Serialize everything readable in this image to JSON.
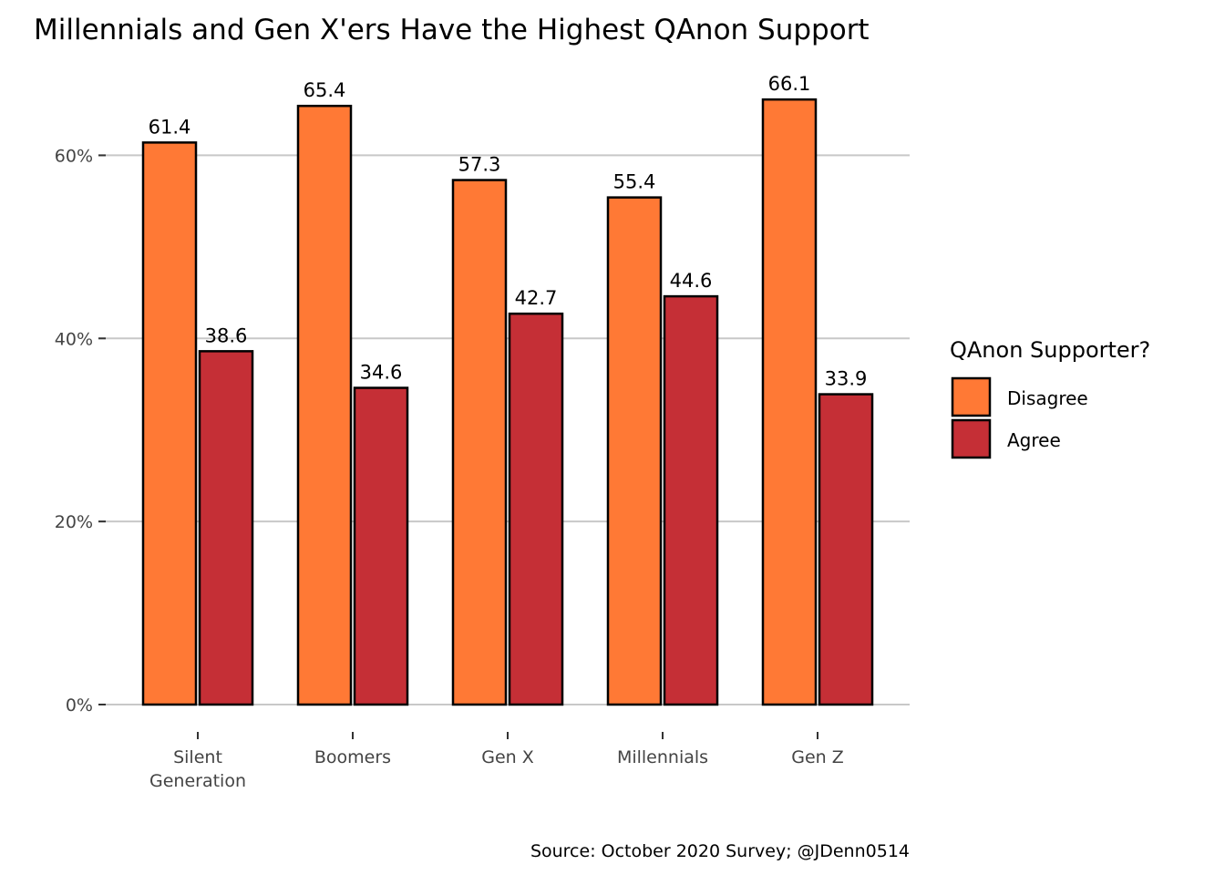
{
  "chart_data": {
    "type": "bar",
    "title": "Millennials and Gen X'ers Have the Highest QAnon Support",
    "caption": "Source: October 2020 Survey; @JDenn0514",
    "xlabel": "",
    "ylabel": "",
    "categories": [
      "Silent Generation",
      "Boomers",
      "Gen X",
      "Millennials",
      "Gen Z"
    ],
    "category_lines": [
      [
        "Silent",
        "Generation"
      ],
      [
        "Boomers"
      ],
      [
        "Gen X"
      ],
      [
        "Millennials"
      ],
      [
        "Gen Z"
      ]
    ],
    "series": [
      {
        "name": "Disagree",
        "values": [
          61.4,
          65.4,
          57.3,
          55.4,
          66.1
        ],
        "labels": [
          "61.4",
          "65.4",
          "57.3",
          "55.4",
          "66.1"
        ],
        "color": "#FF7935"
      },
      {
        "name": "Agree",
        "values": [
          38.6,
          34.6,
          42.7,
          44.6,
          33.9
        ],
        "labels": [
          "38.6",
          "34.6",
          "42.7",
          "44.6",
          "33.9"
        ],
        "color": "#C52F36"
      }
    ],
    "ylim": [
      0,
      70
    ],
    "yticks": [
      0,
      20,
      40,
      60
    ],
    "ytick_labels": [
      "0%",
      "20%",
      "40%",
      "60%"
    ],
    "grid": "horizontal",
    "legend": {
      "title": "QAnon Supporter?",
      "position": "right"
    }
  }
}
